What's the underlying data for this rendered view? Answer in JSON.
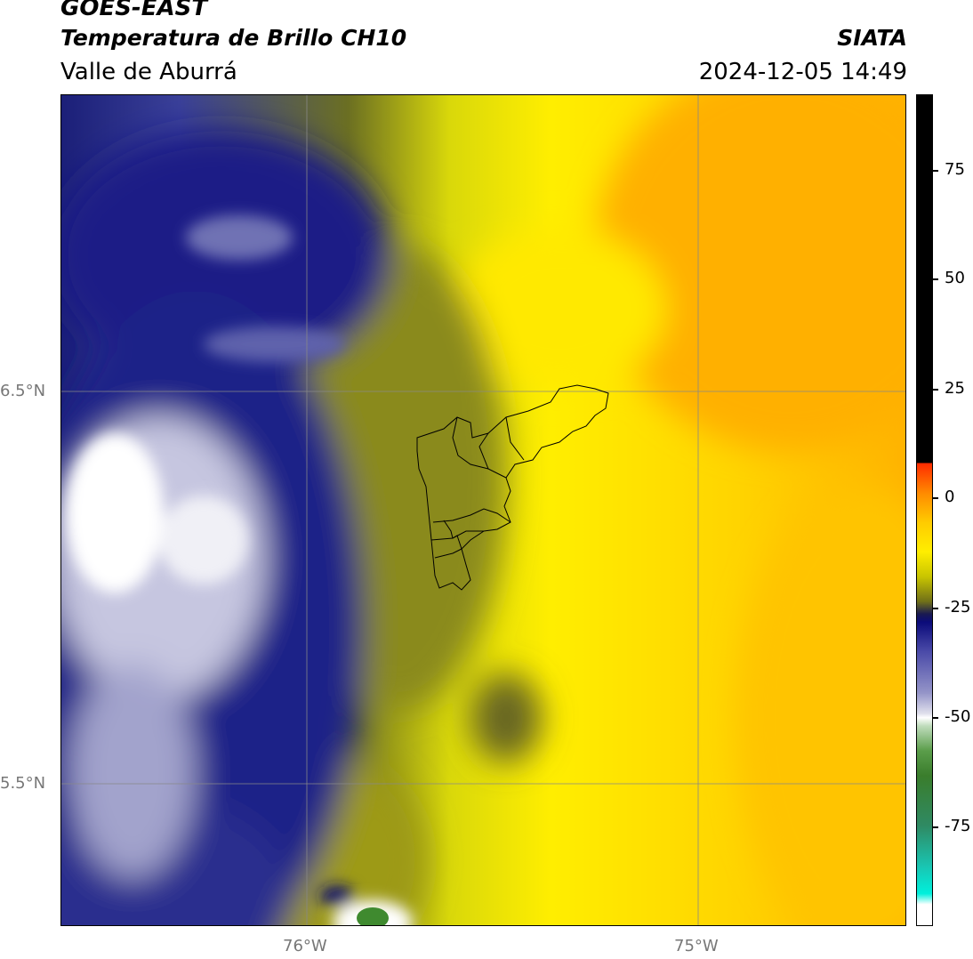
{
  "header": {
    "title": "GOES-EAST",
    "subtitle": "Temperatura de Brillo CH10",
    "region": "Valle de Aburrá",
    "org": "SIATA",
    "datetime": "2024-12-05 14:49"
  },
  "map": {
    "lat_labels": [
      "6.5°N",
      "5.5°N"
    ],
    "lon_labels": [
      "76°W",
      "75°W"
    ],
    "gridlines": true,
    "overlay": "Valle de Aburrá municipal boundaries"
  },
  "colorbar": {
    "ticks": [
      "75",
      "50",
      "25",
      "0",
      "-25",
      "-50",
      "-75"
    ],
    "range": [
      -95,
      92
    ],
    "colors": {
      "black": "#000000",
      "red": "#ff2a00",
      "orange": "#ff8c00",
      "yellow": "#ffee00",
      "olive": "#707018",
      "navy": "#0b0b7a",
      "lavender": "#9494c8",
      "white": "#ffffff",
      "green": "#3a7d2c",
      "cyan": "#00f0dc"
    }
  }
}
